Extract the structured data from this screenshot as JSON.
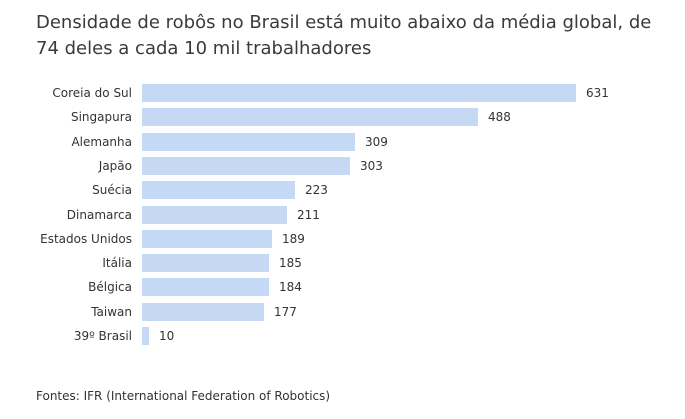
{
  "chart_data": {
    "type": "bar",
    "orientation": "horizontal",
    "title": "Densidade de robôs no Brasil está muito abaixo da média global, de 74 deles a cada 10 mil trabalhadores",
    "categories": [
      "Coreia do Sul",
      "Singapura",
      "Alemanha",
      "Japão",
      "Suécia",
      "Dinamarca",
      "Estados Unidos",
      "Itália",
      "Bélgica",
      "Taiwan",
      "39º Brasil"
    ],
    "values": [
      631,
      488,
      309,
      303,
      223,
      211,
      189,
      185,
      184,
      177,
      10
    ],
    "xlim": [
      0,
      631
    ],
    "grid": false,
    "bar_color": "#c6d9f4"
  },
  "source": "Fontes: IFR (International Federation of Robotics)"
}
